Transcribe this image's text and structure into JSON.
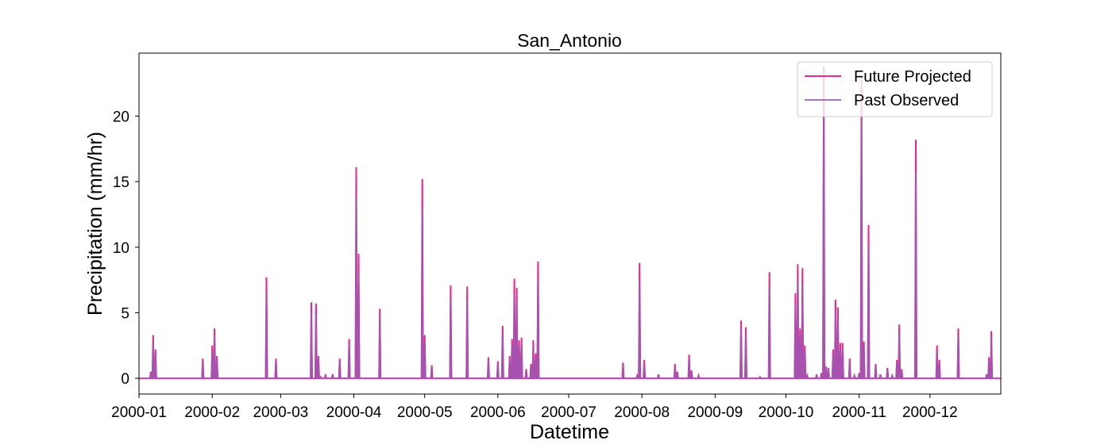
{
  "chart_data": {
    "type": "line",
    "title": "San_Antonio",
    "xlabel": "Datetime",
    "ylabel": "Precipitation (mm/hr)",
    "xlim": [
      "2000-01-01",
      "2000-12-31"
    ],
    "ylim": [
      -1.2,
      24.8
    ],
    "x_ticks": [
      "2000-01",
      "2000-02",
      "2000-03",
      "2000-04",
      "2000-05",
      "2000-06",
      "2000-07",
      "2000-08",
      "2000-09",
      "2000-10",
      "2000-11",
      "2000-12"
    ],
    "y_ticks": [
      0,
      5,
      10,
      15,
      20
    ],
    "grid": false,
    "legend_position": "top-right",
    "series": [
      {
        "name": "Future Projected",
        "color": "#e7298a",
        "events": [
          [
            "2000-01-06",
            0.5
          ],
          [
            "2000-01-07",
            3.3
          ],
          [
            "2000-01-08",
            2.2
          ],
          [
            "2000-01-28",
            1.5
          ],
          [
            "2000-02-01",
            2.5
          ],
          [
            "2000-02-02",
            3.8
          ],
          [
            "2000-02-03",
            1.7
          ],
          [
            "2000-02-24",
            7.7
          ],
          [
            "2000-02-28",
            1.5
          ],
          [
            "2000-03-18",
            0.1
          ],
          [
            "2000-03-14",
            5.8
          ],
          [
            "2000-03-16",
            5.7
          ],
          [
            "2000-03-17",
            1.7
          ],
          [
            "2000-03-20",
            0.3
          ],
          [
            "2000-03-23",
            0.3
          ],
          [
            "2000-03-26",
            1.5
          ],
          [
            "2000-03-30",
            3.0
          ],
          [
            "2000-04-02",
            16.1
          ],
          [
            "2000-04-03",
            9.5
          ],
          [
            "2000-04-12",
            5.3
          ],
          [
            "2000-04-30",
            15.2
          ],
          [
            "2000-05-01",
            3.3
          ],
          [
            "2000-05-04",
            1.0
          ],
          [
            "2000-05-12",
            7.1
          ],
          [
            "2000-05-19",
            7.0
          ],
          [
            "2000-05-28",
            1.6
          ],
          [
            "2000-06-01",
            1.3
          ],
          [
            "2000-06-03",
            4.0
          ],
          [
            "2000-06-06",
            1.7
          ],
          [
            "2000-06-07",
            3.0
          ],
          [
            "2000-06-08",
            7.6
          ],
          [
            "2000-06-09",
            6.9
          ],
          [
            "2000-06-10",
            2.9
          ],
          [
            "2000-06-11",
            3.1
          ],
          [
            "2000-06-13",
            0.7
          ],
          [
            "2000-06-15",
            1.1
          ],
          [
            "2000-06-16",
            2.9
          ],
          [
            "2000-06-17",
            1.9
          ],
          [
            "2000-06-18",
            8.9
          ],
          [
            "2000-07-24",
            1.2
          ],
          [
            "2000-07-30",
            0.2
          ],
          [
            "2000-07-31",
            8.8
          ],
          [
            "2000-08-02",
            1.4
          ],
          [
            "2000-08-08",
            0.3
          ],
          [
            "2000-08-15",
            1.1
          ],
          [
            "2000-08-16",
            0.5
          ],
          [
            "2000-08-21",
            1.8
          ],
          [
            "2000-08-22",
            0.6
          ],
          [
            "2000-08-25",
            0.2
          ],
          [
            "2000-09-12",
            4.4
          ],
          [
            "2000-09-14",
            3.9
          ],
          [
            "2000-09-20",
            0.1
          ],
          [
            "2000-09-24",
            8.1
          ],
          [
            "2000-10-05",
            6.5
          ],
          [
            "2000-10-06",
            8.7
          ],
          [
            "2000-10-07",
            3.8
          ],
          [
            "2000-10-08",
            8.4
          ],
          [
            "2000-10-09",
            2.5
          ],
          [
            "2000-10-10",
            0.2
          ],
          [
            "2000-10-14",
            0.3
          ],
          [
            "2000-10-16",
            0.4
          ],
          [
            "2000-10-17",
            23.8
          ],
          [
            "2000-10-18",
            0.9
          ],
          [
            "2000-10-19",
            0.8
          ],
          [
            "2000-10-21",
            2.2
          ],
          [
            "2000-10-22",
            6.0
          ],
          [
            "2000-10-23",
            5.4
          ],
          [
            "2000-10-24",
            2.7
          ],
          [
            "2000-10-25",
            2.7
          ],
          [
            "2000-10-28",
            1.5
          ],
          [
            "2000-10-30",
            0.2
          ],
          [
            "2000-11-01",
            0.4
          ],
          [
            "2000-11-02",
            23.0
          ],
          [
            "2000-11-03",
            2.8
          ],
          [
            "2000-11-05",
            11.7
          ],
          [
            "2000-11-08",
            1.1
          ],
          [
            "2000-11-10",
            0.3
          ],
          [
            "2000-11-13",
            0.8
          ],
          [
            "2000-11-15",
            0.2
          ],
          [
            "2000-11-17",
            1.4
          ],
          [
            "2000-11-18",
            4.1
          ],
          [
            "2000-11-19",
            0.7
          ],
          [
            "2000-11-25",
            18.2
          ],
          [
            "2000-12-04",
            2.5
          ],
          [
            "2000-12-05",
            1.4
          ],
          [
            "2000-12-13",
            3.8
          ],
          [
            "2000-12-25",
            0.3
          ],
          [
            "2000-12-26",
            1.6
          ],
          [
            "2000-12-27",
            3.6
          ]
        ]
      },
      {
        "name": "Past Observed",
        "color": "#9b59b6",
        "events": [
          [
            "2000-01-06",
            0.4
          ],
          [
            "2000-01-07",
            2.8
          ],
          [
            "2000-01-08",
            1.9
          ],
          [
            "2000-01-28",
            1.3
          ],
          [
            "2000-02-01",
            2.1
          ],
          [
            "2000-02-02",
            3.3
          ],
          [
            "2000-02-03",
            1.5
          ],
          [
            "2000-02-24",
            6.6
          ],
          [
            "2000-02-28",
            1.3
          ],
          [
            "2000-03-18",
            0.1
          ],
          [
            "2000-03-14",
            5.0
          ],
          [
            "2000-03-16",
            4.9
          ],
          [
            "2000-03-17",
            1.5
          ],
          [
            "2000-03-20",
            0.2
          ],
          [
            "2000-03-23",
            0.2
          ],
          [
            "2000-03-26",
            1.3
          ],
          [
            "2000-03-30",
            2.6
          ],
          [
            "2000-04-02",
            13.8
          ],
          [
            "2000-04-03",
            8.1
          ],
          [
            "2000-04-12",
            4.6
          ],
          [
            "2000-04-30",
            13.0
          ],
          [
            "2000-05-01",
            2.8
          ],
          [
            "2000-05-04",
            0.9
          ],
          [
            "2000-05-12",
            6.1
          ],
          [
            "2000-05-19",
            6.0
          ],
          [
            "2000-05-28",
            1.4
          ],
          [
            "2000-06-01",
            1.1
          ],
          [
            "2000-06-03",
            3.4
          ],
          [
            "2000-06-06",
            1.5
          ],
          [
            "2000-06-07",
            2.6
          ],
          [
            "2000-06-08",
            6.5
          ],
          [
            "2000-06-09",
            5.9
          ],
          [
            "2000-06-10",
            2.5
          ],
          [
            "2000-06-11",
            2.7
          ],
          [
            "2000-06-13",
            0.6
          ],
          [
            "2000-06-15",
            0.9
          ],
          [
            "2000-06-16",
            2.5
          ],
          [
            "2000-06-17",
            1.6
          ],
          [
            "2000-06-18",
            7.6
          ],
          [
            "2000-07-24",
            1.0
          ],
          [
            "2000-07-30",
            0.2
          ],
          [
            "2000-07-31",
            7.5
          ],
          [
            "2000-08-02",
            1.2
          ],
          [
            "2000-08-08",
            0.3
          ],
          [
            "2000-08-15",
            0.9
          ],
          [
            "2000-08-16",
            0.4
          ],
          [
            "2000-08-21",
            1.5
          ],
          [
            "2000-08-22",
            0.5
          ],
          [
            "2000-08-25",
            0.2
          ],
          [
            "2000-09-12",
            3.8
          ],
          [
            "2000-09-14",
            3.4
          ],
          [
            "2000-09-20",
            0.1
          ],
          [
            "2000-09-24",
            7.0
          ],
          [
            "2000-10-05",
            5.6
          ],
          [
            "2000-10-06",
            7.5
          ],
          [
            "2000-10-07",
            3.3
          ],
          [
            "2000-10-08",
            7.2
          ],
          [
            "2000-10-09",
            2.2
          ],
          [
            "2000-10-10",
            0.2
          ],
          [
            "2000-10-14",
            0.3
          ],
          [
            "2000-10-16",
            0.3
          ],
          [
            "2000-10-17",
            20.5
          ],
          [
            "2000-10-18",
            0.8
          ],
          [
            "2000-10-19",
            0.7
          ],
          [
            "2000-10-21",
            1.9
          ],
          [
            "2000-10-22",
            5.2
          ],
          [
            "2000-10-23",
            4.6
          ],
          [
            "2000-10-24",
            2.3
          ],
          [
            "2000-10-25",
            2.3
          ],
          [
            "2000-10-28",
            1.3
          ],
          [
            "2000-10-30",
            0.2
          ],
          [
            "2000-11-01",
            0.3
          ],
          [
            "2000-11-02",
            19.8
          ],
          [
            "2000-11-03",
            2.4
          ],
          [
            "2000-11-05",
            10.1
          ],
          [
            "2000-11-08",
            0.9
          ],
          [
            "2000-11-10",
            0.3
          ],
          [
            "2000-11-13",
            0.7
          ],
          [
            "2000-11-15",
            0.2
          ],
          [
            "2000-11-17",
            1.2
          ],
          [
            "2000-11-18",
            3.5
          ],
          [
            "2000-11-19",
            0.6
          ],
          [
            "2000-11-25",
            15.7
          ],
          [
            "2000-12-04",
            2.1
          ],
          [
            "2000-12-05",
            1.2
          ],
          [
            "2000-12-13",
            3.3
          ],
          [
            "2000-12-25",
            0.3
          ],
          [
            "2000-12-26",
            1.4
          ],
          [
            "2000-12-27",
            3.1
          ]
        ]
      }
    ]
  }
}
